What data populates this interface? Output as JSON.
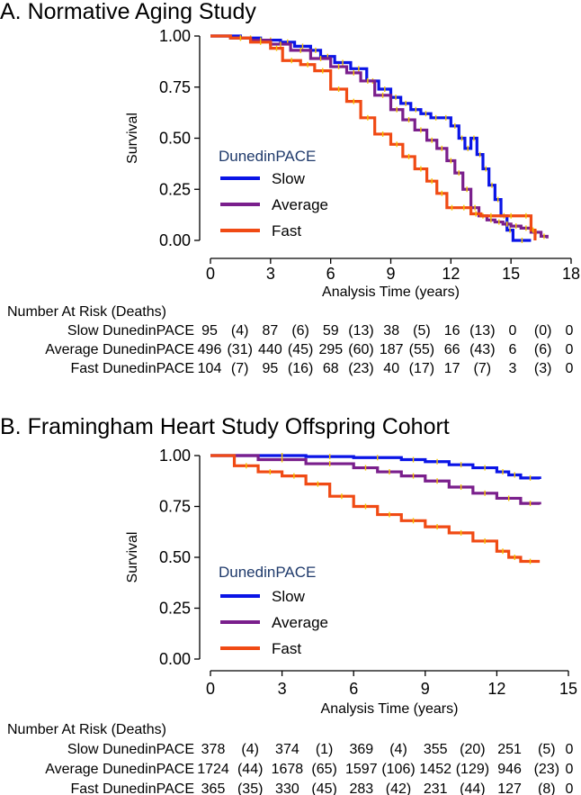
{
  "chart_data": [
    {
      "type": "line",
      "subtype": "kaplan-meier step",
      "title": "A. Normative Aging Study",
      "xlabel": "Analysis Time (years)",
      "ylabel": "Survival",
      "xlim": [
        0,
        18
      ],
      "ylim": [
        0,
        1
      ],
      "xticks": [
        "0",
        "3",
        "6",
        "9",
        "12",
        "15",
        "18"
      ],
      "yticks": [
        "0.00",
        "0.25",
        "0.50",
        "0.75",
        "1.00"
      ],
      "legend": {
        "title": "DunedinPACE",
        "position": "left-middle"
      },
      "series": [
        {
          "name": "Slow",
          "color": "#0a14e6",
          "x": [
            0,
            1.5,
            2.5,
            3.5,
            4.2,
            5.0,
            5.5,
            6.2,
            7.0,
            7.8,
            8.4,
            9.0,
            9.5,
            10.0,
            10.5,
            11.0,
            11.5,
            12.0,
            12.4,
            12.7,
            13.0,
            13.3,
            13.6,
            13.9,
            14.2,
            14.5,
            14.8,
            15.1,
            16.0
          ],
          "y": [
            1.0,
            0.99,
            0.98,
            0.97,
            0.95,
            0.93,
            0.9,
            0.87,
            0.84,
            0.78,
            0.74,
            0.7,
            0.67,
            0.64,
            0.62,
            0.6,
            0.6,
            0.56,
            0.5,
            0.45,
            0.5,
            0.42,
            0.35,
            0.27,
            0.2,
            0.12,
            0.05,
            0.0,
            0.0
          ]
        },
        {
          "name": "Average",
          "color": "#7a1f8c",
          "x": [
            0,
            1.0,
            2.0,
            3.0,
            4.0,
            5.0,
            6.0,
            6.8,
            7.5,
            8.2,
            9.0,
            9.6,
            10.2,
            10.8,
            11.3,
            11.8,
            12.2,
            12.6,
            13.0,
            13.4,
            13.8,
            14.2,
            14.6,
            15.0,
            15.5,
            16.0,
            16.5,
            16.8
          ],
          "y": [
            1.0,
            0.99,
            0.98,
            0.96,
            0.93,
            0.89,
            0.85,
            0.82,
            0.78,
            0.71,
            0.64,
            0.59,
            0.54,
            0.49,
            0.45,
            0.39,
            0.33,
            0.25,
            0.16,
            0.12,
            0.1,
            0.09,
            0.08,
            0.07,
            0.06,
            0.04,
            0.02,
            0.01
          ]
        },
        {
          "name": "Fast",
          "color": "#f04a14",
          "x": [
            0,
            1.0,
            2.0,
            3.0,
            3.6,
            4.5,
            5.2,
            6.0,
            6.8,
            7.5,
            8.2,
            9.0,
            9.6,
            10.2,
            10.8,
            11.3,
            11.8,
            12.3,
            13.0,
            13.5,
            14.5,
            15.5,
            16.0,
            16.2
          ],
          "y": [
            1.0,
            0.99,
            0.97,
            0.94,
            0.88,
            0.86,
            0.83,
            0.74,
            0.68,
            0.6,
            0.52,
            0.47,
            0.41,
            0.35,
            0.29,
            0.23,
            0.16,
            0.16,
            0.13,
            0.12,
            0.12,
            0.12,
            0.05,
            0.0
          ]
        }
      ],
      "risk_table": {
        "header": "Number At Risk (Deaths)",
        "rows": [
          {
            "label": "Slow DunedinPACE",
            "cells": [
              "95",
              "(4)",
              "87",
              "(6)",
              "59",
              "(13)",
              "38",
              "(5)",
              "16",
              "(13)",
              "0",
              "(0)",
              "0"
            ]
          },
          {
            "label": "Average DunedinPACE",
            "cells": [
              "496",
              "(31)",
              "440",
              "(45)",
              "295",
              "(60)",
              "187",
              "(55)",
              "66",
              "(43)",
              "6",
              "(6)",
              "0"
            ]
          },
          {
            "label": "Fast DunedinPACE",
            "cells": [
              "104",
              "(7)",
              "95",
              "(16)",
              "68",
              "(23)",
              "40",
              "(17)",
              "17",
              "(7)",
              "3",
              "(3)",
              "0"
            ]
          }
        ]
      }
    },
    {
      "type": "line",
      "subtype": "kaplan-meier step",
      "title": "B. Framingham Heart Study Offspring Cohort",
      "xlabel": "Analysis Time (years)",
      "ylabel": "Survival",
      "xlim": [
        0,
        15
      ],
      "ylim": [
        0,
        1
      ],
      "xticks": [
        "0",
        "3",
        "6",
        "9",
        "12",
        "15"
      ],
      "yticks": [
        "0.00",
        "0.25",
        "0.50",
        "0.75",
        "1.00"
      ],
      "legend": {
        "title": "DunedinPACE",
        "position": "left-bottom"
      },
      "series": [
        {
          "name": "Slow",
          "color": "#0a14e6",
          "x": [
            0,
            2,
            4,
            6,
            8,
            9,
            10,
            11,
            12,
            12.5,
            13,
            13.8
          ],
          "y": [
            1.0,
            1.0,
            0.995,
            0.99,
            0.98,
            0.97,
            0.955,
            0.94,
            0.92,
            0.905,
            0.89,
            0.885
          ]
        },
        {
          "name": "Average",
          "color": "#7a1f8c",
          "x": [
            0,
            2,
            4,
            6,
            7,
            8,
            9,
            10,
            11,
            12,
            13,
            13.8
          ],
          "y": [
            1.0,
            0.98,
            0.96,
            0.94,
            0.92,
            0.9,
            0.875,
            0.845,
            0.815,
            0.79,
            0.765,
            0.76
          ]
        },
        {
          "name": "Fast",
          "color": "#f04a14",
          "x": [
            0,
            1,
            2,
            3,
            4,
            5,
            6,
            7,
            8,
            9,
            10,
            11,
            12,
            12.5,
            13,
            13.8
          ],
          "y": [
            1.0,
            0.95,
            0.92,
            0.9,
            0.86,
            0.8,
            0.75,
            0.71,
            0.68,
            0.65,
            0.62,
            0.58,
            0.53,
            0.5,
            0.48,
            0.48
          ]
        }
      ],
      "risk_table": {
        "header": "Number At Risk (Deaths)",
        "rows": [
          {
            "label": "Slow DunedinPACE",
            "cells": [
              "378",
              "(4)",
              "374",
              "(1)",
              "369",
              "(4)",
              "355",
              "(20)",
              "251",
              "(5)",
              "0"
            ]
          },
          {
            "label": "Average DunedinPACE",
            "cells": [
              "1724",
              "(44)",
              "1678",
              "(65)",
              "1597",
              "(106)",
              "1452",
              "(129)",
              "946",
              "(23)",
              "0"
            ]
          },
          {
            "label": "Fast DunedinPACE",
            "cells": [
              "365",
              "(35)",
              "330",
              "(45)",
              "283",
              "(42)",
              "231",
              "(44)",
              "127",
              "(8)",
              "0"
            ]
          }
        ]
      }
    }
  ],
  "colors": {
    "censor_mark": "#f5c400",
    "legend_title": "#1f3a6b"
  }
}
